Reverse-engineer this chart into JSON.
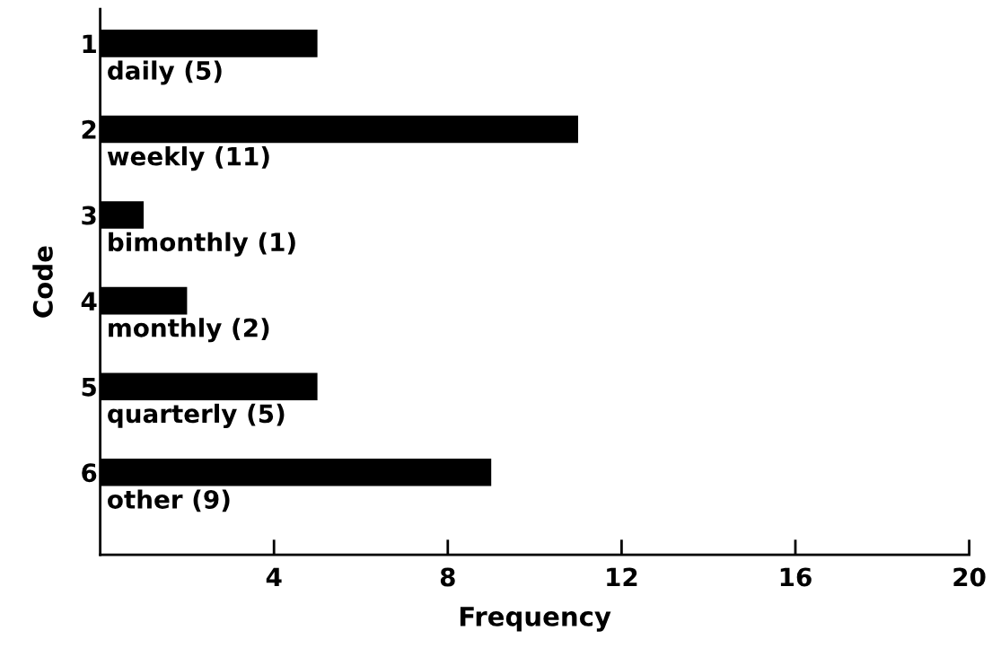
{
  "chart_data": {
    "type": "bar",
    "orientation": "horizontal",
    "xlabel": "Frequency",
    "ylabel": "Code",
    "categories": [
      "1",
      "2",
      "3",
      "4",
      "5",
      "6"
    ],
    "values": [
      5,
      11,
      1,
      2,
      5,
      9
    ],
    "value_labels": [
      "daily (5)",
      "weekly (11)",
      "bimonthly (1)",
      "monthly (2)",
      "quarterly (5)",
      "other (9)"
    ],
    "color": "#000000",
    "xlim": [
      0,
      20
    ],
    "xticks": [
      4,
      8,
      12,
      16,
      20
    ],
    "grid": false,
    "legend": false
  }
}
